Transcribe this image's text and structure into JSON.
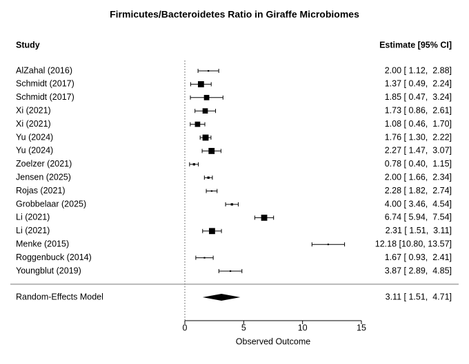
{
  "chart_data": {
    "type": "forest",
    "title": "Firmicutes/Bacteroidetes Ratio in Giraffe Microbiomes",
    "column_headers": {
      "study": "Study",
      "estimate": "Estimate [95% CI]"
    },
    "studies": [
      {
        "study": "AlZahal (2016)",
        "estimate": 2.0,
        "lower": 1.12,
        "upper": 2.88,
        "label": "2.00 [ 1.12,  2.88]",
        "weight": 2
      },
      {
        "study": "Schmidt (2017)",
        "estimate": 1.37,
        "lower": 0.49,
        "upper": 2.24,
        "label": "1.37 [ 0.49,  2.24]",
        "weight": 8
      },
      {
        "study": "Schmidt (2017)",
        "estimate": 1.85,
        "lower": 0.47,
        "upper": 3.24,
        "label": "1.85 [ 0.47,  3.24]",
        "weight": 7
      },
      {
        "study": "Xi (2021)",
        "estimate": 1.73,
        "lower": 0.86,
        "upper": 2.61,
        "label": "1.73 [ 0.86,  2.61]",
        "weight": 7
      },
      {
        "study": "Xi (2021)",
        "estimate": 1.08,
        "lower": 0.46,
        "upper": 1.7,
        "label": "1.08 [ 0.46,  1.70]",
        "weight": 7
      },
      {
        "study": "Yu (2024)",
        "estimate": 1.76,
        "lower": 1.3,
        "upper": 2.22,
        "label": "1.76 [ 1.30,  2.22]",
        "weight": 8
      },
      {
        "study": "Yu (2024)",
        "estimate": 2.27,
        "lower": 1.47,
        "upper": 3.07,
        "label": "2.27 [ 1.47,  3.07]",
        "weight": 8
      },
      {
        "study": "Zoelzer (2021)",
        "estimate": 0.78,
        "lower": 0.4,
        "upper": 1.15,
        "label": "0.78 [ 0.40,  1.15]",
        "weight": 3
      },
      {
        "study": "Jensen (2025)",
        "estimate": 2.0,
        "lower": 1.66,
        "upper": 2.34,
        "label": "2.00 [ 1.66,  2.34]",
        "weight": 3
      },
      {
        "study": "Rojas (2021)",
        "estimate": 2.28,
        "lower": 1.82,
        "upper": 2.74,
        "label": "2.28 [ 1.82,  2.74]",
        "weight": 2
      },
      {
        "study": "Grobbelaar (2025)",
        "estimate": 4.0,
        "lower": 3.46,
        "upper": 4.54,
        "label": "4.00 [ 3.46,  4.54]",
        "weight": 3
      },
      {
        "study": "Li (2021)",
        "estimate": 6.74,
        "lower": 5.94,
        "upper": 7.54,
        "label": "6.74 [ 5.94,  7.54]",
        "weight": 8
      },
      {
        "study": "Li (2021)",
        "estimate": 2.31,
        "lower": 1.51,
        "upper": 3.11,
        "label": "2.31 [ 1.51,  3.11]",
        "weight": 8
      },
      {
        "study": "Menke (2015)",
        "estimate": 12.18,
        "lower": 10.8,
        "upper": 13.57,
        "label": "12.18 [10.80, 13.57]",
        "weight": 2
      },
      {
        "study": "Roggenbuck (2014)",
        "estimate": 1.67,
        "lower": 0.93,
        "upper": 2.41,
        "label": "1.67 [ 0.93,  2.41]",
        "weight": 2
      },
      {
        "study": "Youngblut (2019)",
        "estimate": 3.87,
        "lower": 2.89,
        "upper": 4.85,
        "label": "3.87 [ 2.89,  4.85]",
        "weight": 2
      }
    ],
    "model": {
      "study": "Random-Effects Model",
      "estimate": 3.11,
      "lower": 1.51,
      "upper": 4.71,
      "label": "3.11 [ 1.51,  4.71]"
    },
    "xlabel": "Observed Outcome",
    "xlim": [
      0,
      15
    ],
    "xticks": [
      0,
      5,
      10,
      15
    ],
    "reference_line": 0,
    "color": "#000000"
  }
}
